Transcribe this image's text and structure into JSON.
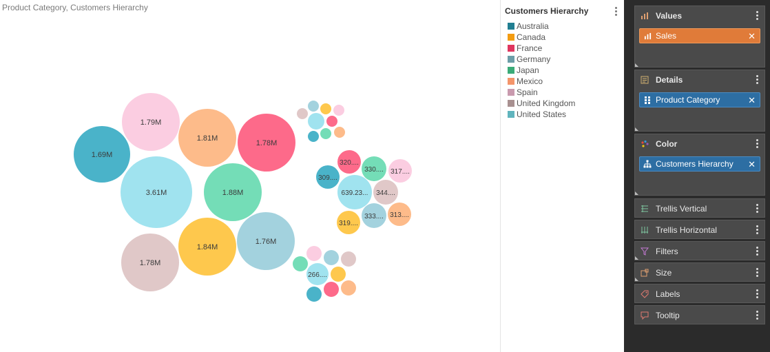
{
  "chart_title": "Product Category, Customers Hierarchy",
  "legend": {
    "title": "Customers Hierarchy",
    "items": [
      {
        "label": "Australia",
        "color": "#217e91"
      },
      {
        "label": "Canada",
        "color": "#f39c12"
      },
      {
        "label": "France",
        "color": "#e0365f"
      },
      {
        "label": "Germany",
        "color": "#6c9ea8"
      },
      {
        "label": "Japan",
        "color": "#3bab78"
      },
      {
        "label": "Mexico",
        "color": "#f4956a"
      },
      {
        "label": "Spain",
        "color": "#c99aae"
      },
      {
        "label": "United Kingdom",
        "color": "#a89090"
      },
      {
        "label": "United States",
        "color": "#60b4bd"
      }
    ]
  },
  "fields_panel": {
    "values": {
      "label": "Values",
      "pill": "Sales"
    },
    "details": {
      "label": "Details",
      "pill": "Product Category"
    },
    "color": {
      "label": "Color",
      "pill": "Customers Hierarchy"
    },
    "trellis_vertical": "Trellis Vertical",
    "trellis_horizontal": "Trellis Horizontal",
    "filters": "Filters",
    "size": "Size",
    "labels": "Labels",
    "tooltip": "Tooltip"
  },
  "chart_data": {
    "type": "bubble",
    "bubble_colors": {
      "Australia": "#4ab3c9",
      "Canada": "#fec84d",
      "France": "#fd6a8a",
      "Germany": "#a3d2de",
      "Japan": "#74ddb7",
      "Mexico": "#fdbb8a",
      "Spain": "#fbcde1",
      "United Kingdom": "#e0c8c8",
      "United States": "#a0e3ef"
    },
    "groups": [
      {
        "bubbles": [
          {
            "series": "United States",
            "value": 3610000,
            "label": "3.61M"
          },
          {
            "series": "Japan",
            "value": 1880000,
            "label": "1.88M"
          },
          {
            "series": "Canada",
            "value": 1840000,
            "label": "1.84M"
          },
          {
            "series": "Mexico",
            "value": 1810000,
            "label": "1.81M"
          },
          {
            "series": "Spain",
            "value": 1790000,
            "label": "1.79M"
          },
          {
            "series": "France",
            "value": 1780000,
            "label": "1.78M"
          },
          {
            "series": "United Kingdom",
            "value": 1780000,
            "label": "1.78M"
          },
          {
            "series": "Germany",
            "value": 1760000,
            "label": "1.76M"
          },
          {
            "series": "Australia",
            "value": 1690000,
            "label": "1.69M"
          }
        ]
      },
      {
        "bubbles": [
          {
            "series": "United States",
            "label": ""
          },
          {
            "series": "Canada",
            "label": ""
          },
          {
            "series": "Spain",
            "label": ""
          },
          {
            "series": "Germany",
            "label": ""
          },
          {
            "series": "Mexico",
            "label": ""
          },
          {
            "series": "France",
            "label": ""
          },
          {
            "series": "Japan",
            "label": ""
          },
          {
            "series": "Australia",
            "label": ""
          },
          {
            "series": "United Kingdom",
            "label": ""
          }
        ]
      },
      {
        "bubbles": [
          {
            "series": "United States",
            "label": "639.23..."
          },
          {
            "series": "United Kingdom",
            "label": "344...."
          },
          {
            "series": "Germany",
            "label": "333...."
          },
          {
            "series": "Japan",
            "label": "330...."
          },
          {
            "series": "France",
            "label": "320...."
          },
          {
            "series": "Canada",
            "label": "319...."
          },
          {
            "series": "Spain",
            "label": "317...."
          },
          {
            "series": "Mexico",
            "label": "313...."
          },
          {
            "series": "Australia",
            "label": "309...."
          }
        ]
      },
      {
        "bubbles": [
          {
            "series": "United States",
            "label": "266...."
          },
          {
            "series": "Spain",
            "label": ""
          },
          {
            "series": "Germany",
            "label": ""
          },
          {
            "series": "United Kingdom",
            "label": ""
          },
          {
            "series": "Canada",
            "label": ""
          },
          {
            "series": "Japan",
            "label": ""
          },
          {
            "series": "Mexico",
            "label": ""
          },
          {
            "series": "France",
            "label": ""
          },
          {
            "series": "Australia",
            "label": ""
          }
        ]
      }
    ]
  }
}
